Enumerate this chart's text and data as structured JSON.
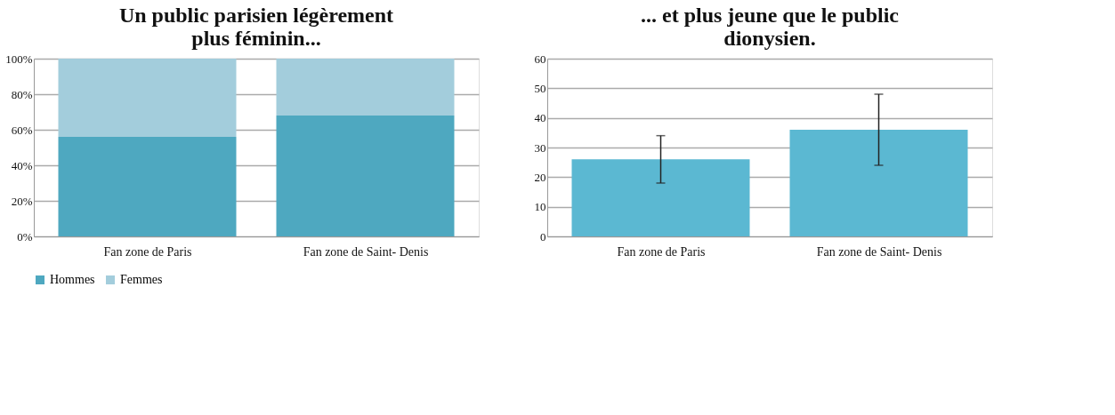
{
  "chart_data": [
    {
      "type": "bar",
      "title": "Un public parisien légèrement\nplus féminin...",
      "categories": [
        "Fan zone de Paris",
        "Fan zone de Saint- Denis"
      ],
      "stacked": true,
      "series": [
        {
          "name": "Hommes",
          "color": "#4ea8c0",
          "values": [
            56,
            68
          ]
        },
        {
          "name": "Femmes",
          "color": "#a3cddc",
          "values": [
            44,
            32
          ]
        }
      ],
      "ylim": [
        0,
        100
      ],
      "yticks": [
        {
          "value": 0,
          "label": "0%"
        },
        {
          "value": 20,
          "label": "20%"
        },
        {
          "value": 40,
          "label": "40%"
        },
        {
          "value": 60,
          "label": "60%"
        },
        {
          "value": 80,
          "label": "80%"
        },
        {
          "value": 100,
          "label": "100%"
        }
      ],
      "grid": "y",
      "legend": "bottom"
    },
    {
      "type": "bar",
      "title": "... et plus jeune que le public\ndionysien.",
      "categories": [
        "Fan zone de Paris",
        "Fan zone de Saint- Denis"
      ],
      "values": [
        26,
        36
      ],
      "errors": [
        8,
        12
      ],
      "color": "#5bb8d2",
      "ylim": [
        0,
        60
      ],
      "yticks": [
        0,
        10,
        20,
        30,
        40,
        50,
        60
      ],
      "grid": "y"
    }
  ]
}
